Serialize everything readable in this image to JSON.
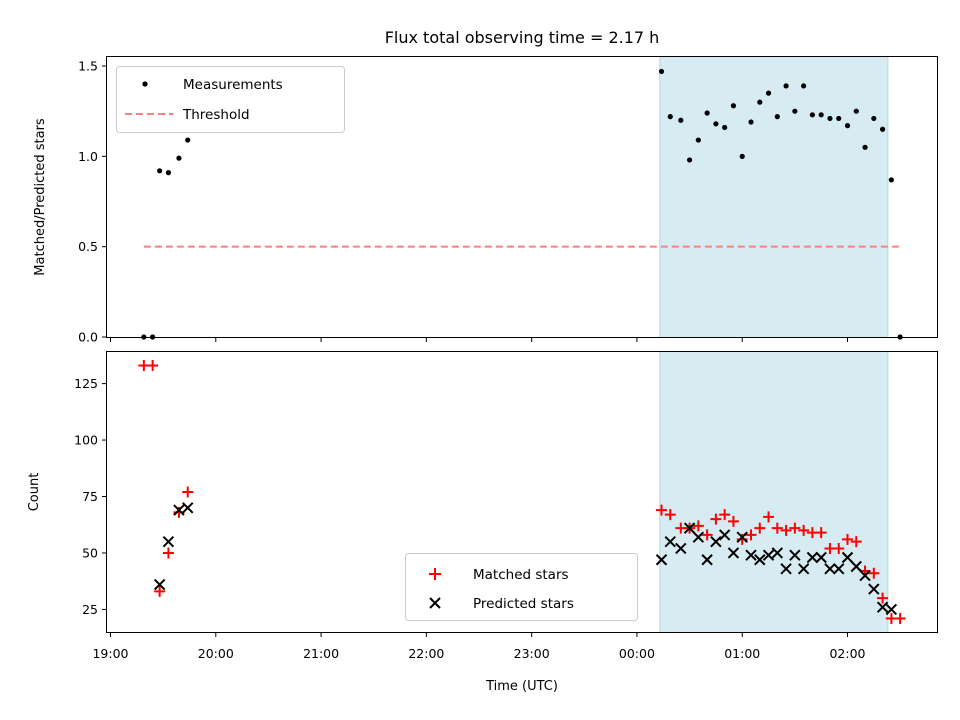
{
  "chart_data": [
    {
      "type": "scatter",
      "title": "Flux total observing time = 2.17 h",
      "ylabel": "Matched/Predicted stars",
      "xlabel": "",
      "xlim": [
        "18:58",
        "02:51"
      ],
      "ylim": [
        0,
        1.55
      ],
      "yticks": [
        0.0,
        0.5,
        1.0,
        1.5
      ],
      "yticklabels": [
        "0.0",
        "0.5",
        "1.0",
        "1.5"
      ],
      "shaded_span": {
        "start": "00:13",
        "end": "02:23",
        "color": "#add8e6"
      },
      "legend_position": "upper left",
      "series": [
        {
          "name": "Measurements",
          "marker": "dot",
          "color": "#000000",
          "points": [
            [
              "19:19",
              0.0
            ],
            [
              "19:24",
              0.0
            ],
            [
              "19:28",
              0.92
            ],
            [
              "19:33",
              0.91
            ],
            [
              "19:39",
              0.99
            ],
            [
              "19:44",
              1.09
            ],
            [
              "00:14",
              1.47
            ],
            [
              "00:19",
              1.22
            ],
            [
              "00:25",
              1.2
            ],
            [
              "00:30",
              0.98
            ],
            [
              "00:35",
              1.09
            ],
            [
              "00:40",
              1.24
            ],
            [
              "00:45",
              1.18
            ],
            [
              "00:50",
              1.16
            ],
            [
              "00:55",
              1.28
            ],
            [
              "01:00",
              1.0
            ],
            [
              "01:05",
              1.19
            ],
            [
              "01:10",
              1.3
            ],
            [
              "01:15",
              1.35
            ],
            [
              "01:20",
              1.22
            ],
            [
              "01:25",
              1.39
            ],
            [
              "01:30",
              1.25
            ],
            [
              "01:35",
              1.39
            ],
            [
              "01:40",
              1.23
            ],
            [
              "01:45",
              1.23
            ],
            [
              "01:50",
              1.21
            ],
            [
              "01:55",
              1.21
            ],
            [
              "02:00",
              1.17
            ],
            [
              "02:05",
              1.25
            ],
            [
              "02:10",
              1.05
            ],
            [
              "02:15",
              1.21
            ],
            [
              "02:20",
              1.15
            ],
            [
              "02:25",
              0.87
            ],
            [
              "02:30",
              0.0
            ]
          ]
        },
        {
          "name": "Threshold",
          "marker": "dashed-line",
          "color": "#ff7f7f",
          "points": [
            [
              "19:19",
              0.5
            ],
            [
              "02:30",
              0.5
            ]
          ]
        }
      ]
    },
    {
      "type": "scatter",
      "title": "",
      "ylabel": "Count",
      "xlabel": "Time (UTC)",
      "xlim": [
        "18:58",
        "02:51"
      ],
      "ylim": [
        15,
        139
      ],
      "yticks": [
        25,
        50,
        75,
        100,
        125
      ],
      "yticklabels": [
        "25",
        "50",
        "75",
        "100",
        "125"
      ],
      "xticks": [
        "19:00",
        "20:00",
        "21:00",
        "22:00",
        "23:00",
        "00:00",
        "01:00",
        "02:00"
      ],
      "xticklabels": [
        "19:00",
        "20:00",
        "21:00",
        "22:00",
        "23:00",
        "00:00",
        "01:00",
        "02:00"
      ],
      "shaded_span": {
        "start": "00:13",
        "end": "02:23",
        "color": "#add8e6"
      },
      "legend_position": "lower center",
      "series": [
        {
          "name": "Matched stars",
          "marker": "plus",
          "color": "#ff0000",
          "points": [
            [
              "19:19",
              133
            ],
            [
              "19:24",
              133
            ],
            [
              "19:28",
              33
            ],
            [
              "19:33",
              50
            ],
            [
              "19:39",
              68
            ],
            [
              "19:44",
              77
            ],
            [
              "00:14",
              69
            ],
            [
              "00:19",
              67
            ],
            [
              "00:25",
              61
            ],
            [
              "00:30",
              61
            ],
            [
              "00:35",
              62
            ],
            [
              "00:40",
              58
            ],
            [
              "00:45",
              65
            ],
            [
              "00:50",
              67
            ],
            [
              "00:55",
              64
            ],
            [
              "01:00",
              56
            ],
            [
              "01:05",
              58
            ],
            [
              "01:10",
              61
            ],
            [
              "01:15",
              66
            ],
            [
              "01:20",
              61
            ],
            [
              "01:25",
              60
            ],
            [
              "01:30",
              61
            ],
            [
              "01:35",
              60
            ],
            [
              "01:40",
              59
            ],
            [
              "01:45",
              59
            ],
            [
              "01:50",
              52
            ],
            [
              "01:55",
              52
            ],
            [
              "02:00",
              56
            ],
            [
              "02:05",
              55
            ],
            [
              "02:10",
              42
            ],
            [
              "02:15",
              41
            ],
            [
              "02:20",
              30
            ],
            [
              "02:25",
              21
            ],
            [
              "02:30",
              21
            ]
          ]
        },
        {
          "name": "Predicted stars",
          "marker": "x",
          "color": "#000000",
          "points": [
            [
              "19:28",
              36
            ],
            [
              "19:33",
              55
            ],
            [
              "19:39",
              69
            ],
            [
              "19:44",
              70
            ],
            [
              "00:14",
              47
            ],
            [
              "00:19",
              55
            ],
            [
              "00:25",
              52
            ],
            [
              "00:30",
              61
            ],
            [
              "00:35",
              57
            ],
            [
              "00:40",
              47
            ],
            [
              "00:45",
              55
            ],
            [
              "00:50",
              58
            ],
            [
              "00:55",
              50
            ],
            [
              "01:00",
              57
            ],
            [
              "01:05",
              49
            ],
            [
              "01:10",
              47
            ],
            [
              "01:15",
              49
            ],
            [
              "01:20",
              50
            ],
            [
              "01:25",
              43
            ],
            [
              "01:30",
              49
            ],
            [
              "01:35",
              43
            ],
            [
              "01:40",
              48
            ],
            [
              "01:45",
              48
            ],
            [
              "01:50",
              43
            ],
            [
              "01:55",
              43
            ],
            [
              "02:00",
              48
            ],
            [
              "02:05",
              44
            ],
            [
              "02:10",
              40
            ],
            [
              "02:15",
              34
            ],
            [
              "02:20",
              26
            ],
            [
              "02:25",
              25
            ]
          ]
        }
      ]
    }
  ]
}
